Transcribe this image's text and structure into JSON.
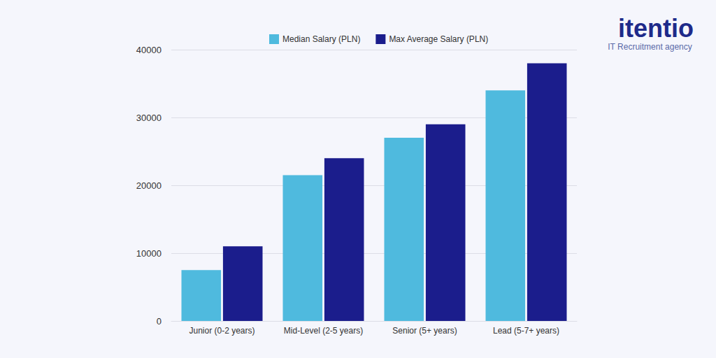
{
  "chart_data": {
    "type": "bar",
    "categories": [
      "Junior (0-2 years)",
      "Mid-Level (2-5 years)",
      "Senior (5+ years)",
      "Lead (5-7+ years)"
    ],
    "series": [
      {
        "name": "Median Salary (PLN)",
        "color": "#4fbade",
        "values": [
          7500,
          21500,
          27000,
          34000
        ]
      },
      {
        "name": "Max Average Salary (PLN)",
        "color": "#1b1d8c",
        "values": [
          11000,
          24000,
          29000,
          38000
        ]
      }
    ],
    "ylim": [
      0,
      40000
    ],
    "yticks": [
      0,
      10000,
      20000,
      30000,
      40000
    ],
    "grid": true,
    "legend": "top"
  },
  "logo": {
    "name": "itentio",
    "tagline": "IT Recruitment agency"
  }
}
